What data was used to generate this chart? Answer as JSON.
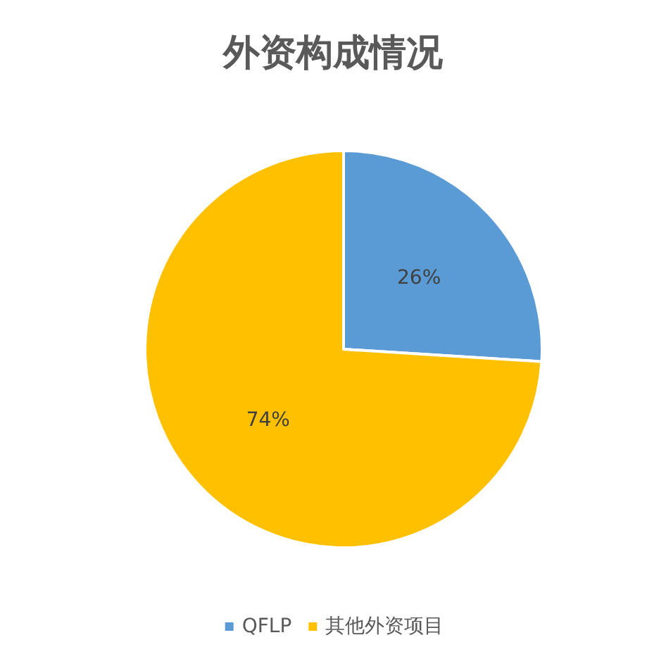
{
  "chart_data": {
    "type": "pie",
    "title": "外资构成情况",
    "categories": [
      "QFLP",
      "其他外资项目"
    ],
    "values": [
      26,
      74
    ],
    "colors": [
      "#5b9bd5",
      "#ffc000"
    ],
    "value_labels": [
      "26%",
      "74%"
    ],
    "legend": "bottom"
  }
}
